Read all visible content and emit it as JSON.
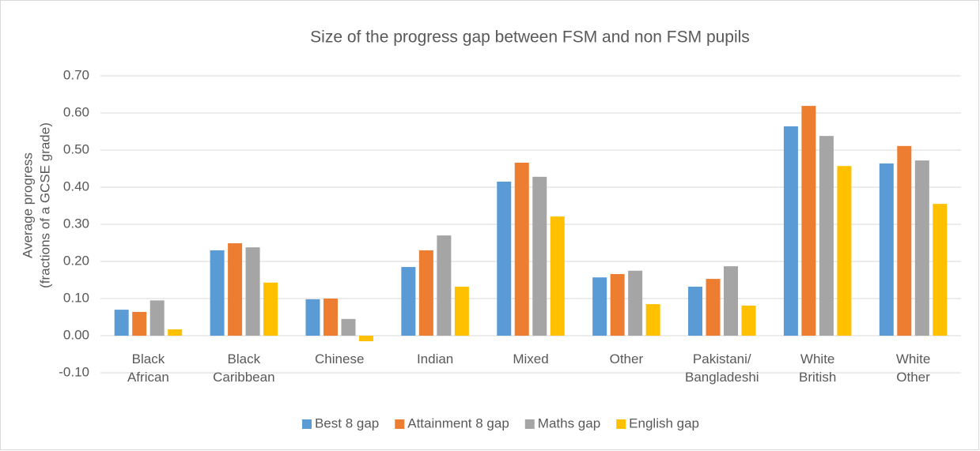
{
  "chart_data": {
    "type": "bar",
    "title": "Size of the progress gap between FSM and non FSM pupils",
    "y_label": [
      "Average progress",
      "(fractions of a GCSE grade)"
    ],
    "categories": [
      "Black African",
      "Black Caribbean",
      "Chinese",
      "Indian",
      "Mixed",
      "Other",
      "Pakistani/ Bangladeshi",
      "White British",
      "White Other"
    ],
    "series": [
      {
        "name": "Best 8 gap",
        "color": "#5b9bd5",
        "values": [
          0.07,
          0.23,
          0.098,
          0.185,
          0.415,
          0.157,
          0.132,
          0.564,
          0.464
        ]
      },
      {
        "name": "Attainment 8 gap",
        "color": "#ed7d31",
        "values": [
          0.064,
          0.249,
          0.1,
          0.23,
          0.466,
          0.166,
          0.153,
          0.619,
          0.511
        ]
      },
      {
        "name": "Maths gap",
        "color": "#a5a5a5",
        "values": [
          0.095,
          0.238,
          0.045,
          0.27,
          0.428,
          0.175,
          0.187,
          0.538,
          0.472
        ]
      },
      {
        "name": "English gap",
        "color": "#ffc000",
        "values": [
          0.017,
          0.143,
          -0.015,
          0.132,
          0.321,
          0.085,
          0.081,
          0.457,
          0.355
        ]
      }
    ],
    "ylim": [
      -0.1,
      0.7
    ],
    "yticks": [
      {
        "value": -0.1,
        "label": "-0.10"
      },
      {
        "value": 0,
        "label": "0.00"
      },
      {
        "value": 0.1,
        "label": "0.10"
      },
      {
        "value": 0.2,
        "label": "0.20"
      },
      {
        "value": 0.3,
        "label": "0.30"
      },
      {
        "value": 0.4,
        "label": "0.40"
      },
      {
        "value": 0.5,
        "label": "0.50"
      },
      {
        "value": 0.6,
        "label": "0.60"
      },
      {
        "value": 0.7,
        "label": "0.70"
      }
    ],
    "grid": true,
    "legend": "bottom"
  }
}
